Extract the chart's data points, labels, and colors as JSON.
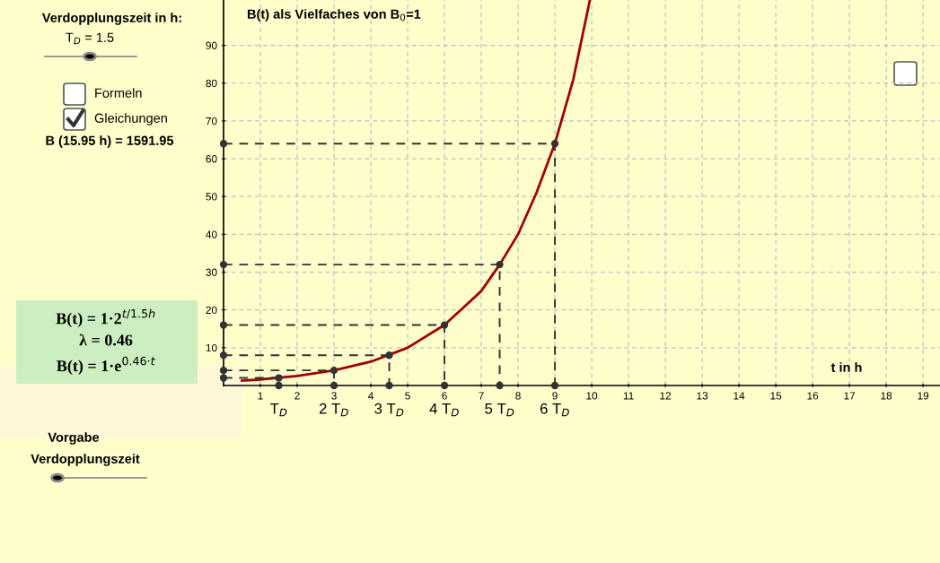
{
  "chart_data": {
    "type": "line",
    "title": "B(t) als Vielfaches von B$_{0}$=1",
    "xlabel": "t in h",
    "xlim": [
      0,
      19.46
    ],
    "ylim": [
      0,
      102
    ],
    "xticks": [
      1,
      2,
      3,
      4,
      5,
      6,
      7,
      8,
      9,
      10,
      11,
      12,
      13,
      14,
      15,
      16,
      17,
      18,
      19
    ],
    "yticks": [
      10,
      20,
      30,
      40,
      50,
      60,
      70,
      80,
      90
    ],
    "grid": true,
    "series": [
      {
        "color": "#a00000",
        "line_style": "solid",
        "marker": "none",
        "x": [
          0.5,
          1,
          2,
          3,
          4,
          5,
          6,
          7,
          7.5,
          8,
          8.5,
          9,
          9.5,
          9.95
        ],
        "values": [
          1.3,
          1.6,
          2.5,
          4,
          6.3,
          10,
          16,
          25,
          32,
          40,
          51,
          64,
          81,
          102
        ]
      },
      {
        "color": "#333333",
        "line_style": "dashed",
        "marker": "circle",
        "x": [
          0,
          9,
          9,
          null,
          0,
          7.5,
          7.5,
          null,
          0,
          6,
          6,
          null,
          0,
          4.5,
          4.5,
          null,
          0,
          3,
          3
        ],
        "values": [
          64,
          64,
          0,
          null,
          32,
          32,
          0,
          null,
          16,
          16,
          0,
          null,
          8,
          8,
          0,
          null,
          4,
          4,
          0
        ]
      },
      {
        "type": "scatter",
        "color": "#333333",
        "line_style": "dashed",
        "marker": "circle",
        "x": [
          0,
          1.5,
          1.5
        ],
        "values": [
          2,
          2,
          0
        ]
      }
    ],
    "annotations": [
      "Verdopplungszeit in h:",
      "T$_{D}$ = 1.5",
      "Formeln",
      "Gleichungen",
      "B (15.95 h) = 1591.95",
      "B(t) = 1·2$^{t/1.5h}$",
      "λ = 0.46",
      "B(t) = 1·e$^{0.46·t}$",
      "Vorgabe",
      "Verdopplungszeit",
      {
        "text": "T$_{D}$",
        "x": 1.5,
        "y": 0
      },
      {
        "text": "2 T$_{D}$",
        "x": 3,
        "y": 0
      },
      {
        "text": "3 T$_{D}$",
        "x": 4.5,
        "y": 0
      },
      {
        "text": "4 T$_{D}$",
        "x": 6,
        "y": 0
      },
      {
        "text": "5 T$_{D}$",
        "x": 7.5,
        "y": 0
      },
      {
        "text": "6 T$_{D}$",
        "x": 9,
        "y": 0
      }
    ]
  }
}
